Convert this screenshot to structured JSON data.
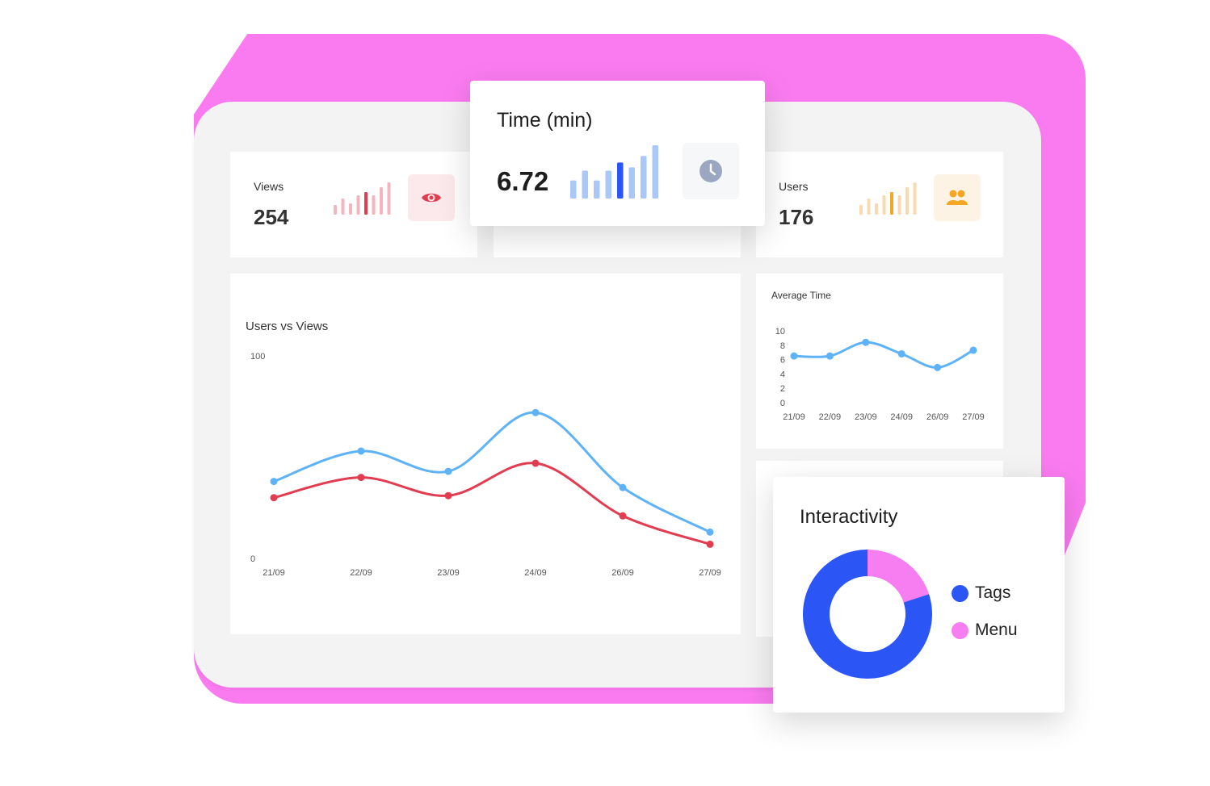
{
  "colors": {
    "pink_back": "#FA7BF0",
    "blue_line": "#5DB2F8",
    "red_line": "#E23C50",
    "accent_blue": "#2B55F5",
    "accent_pink": "#F77EF0",
    "orange": "#F5A623",
    "clock_gray": "#9BA6C0"
  },
  "stats": {
    "views": {
      "label": "Views",
      "value": "254",
      "icon": "eye-icon"
    },
    "users": {
      "label": "Users",
      "value": "176",
      "icon": "users-icon"
    },
    "time": {
      "label": "Time (min)",
      "value": "6.72",
      "icon": "clock-icon"
    }
  },
  "chart_data": [
    {
      "type": "line",
      "title": "Users vs Views",
      "categories": [
        "21/09",
        "22/09",
        "23/09",
        "24/09",
        "26/09",
        "27/09"
      ],
      "ylim": [
        0,
        100
      ],
      "y_ticks": [
        "100",
        "0"
      ],
      "series": [
        {
          "values": [
            38,
            53,
            43,
            72,
            35,
            13
          ],
          "color": "#5DB2F8"
        },
        {
          "values": [
            30,
            40,
            31,
            47,
            21,
            7
          ],
          "color": "#E23C50"
        }
      ]
    },
    {
      "type": "line",
      "title": "Average Time",
      "categories": [
        "21/09",
        "22/09",
        "23/09",
        "24/09",
        "26/09",
        "27/09"
      ],
      "ylim": [
        0,
        10
      ],
      "y_ticks": [
        "10",
        "8",
        "6",
        "4",
        "2",
        "0"
      ],
      "series": [
        {
          "values": [
            6.5,
            6.5,
            8.4,
            6.8,
            4.9,
            7.3
          ],
          "color": "#5DB2F8"
        }
      ]
    },
    {
      "type": "pie",
      "title": "Interactivity",
      "labels": [
        "Tags",
        "Menu"
      ],
      "values": [
        80,
        20
      ],
      "colors": [
        "#2B55F5",
        "#F77EF0"
      ]
    },
    {
      "type": "bar",
      "name": "views-sparkline",
      "values": [
        12,
        20,
        14,
        24,
        28,
        24,
        34,
        40
      ],
      "highlight_index": 4,
      "color": "#F3B6BE",
      "highlight_color": "#E23C50"
    },
    {
      "type": "bar",
      "name": "time-sparkline",
      "values": [
        22,
        34,
        22,
        34,
        44,
        38,
        52,
        65
      ],
      "highlight_index": 4,
      "color": "#A9C7F7",
      "highlight_color": "#2B55F5"
    },
    {
      "type": "bar",
      "name": "users-sparkline",
      "values": [
        12,
        20,
        14,
        24,
        28,
        24,
        34,
        40
      ],
      "highlight_index": 4,
      "color": "#FBD9AE",
      "highlight_color": "#F5A623"
    }
  ]
}
